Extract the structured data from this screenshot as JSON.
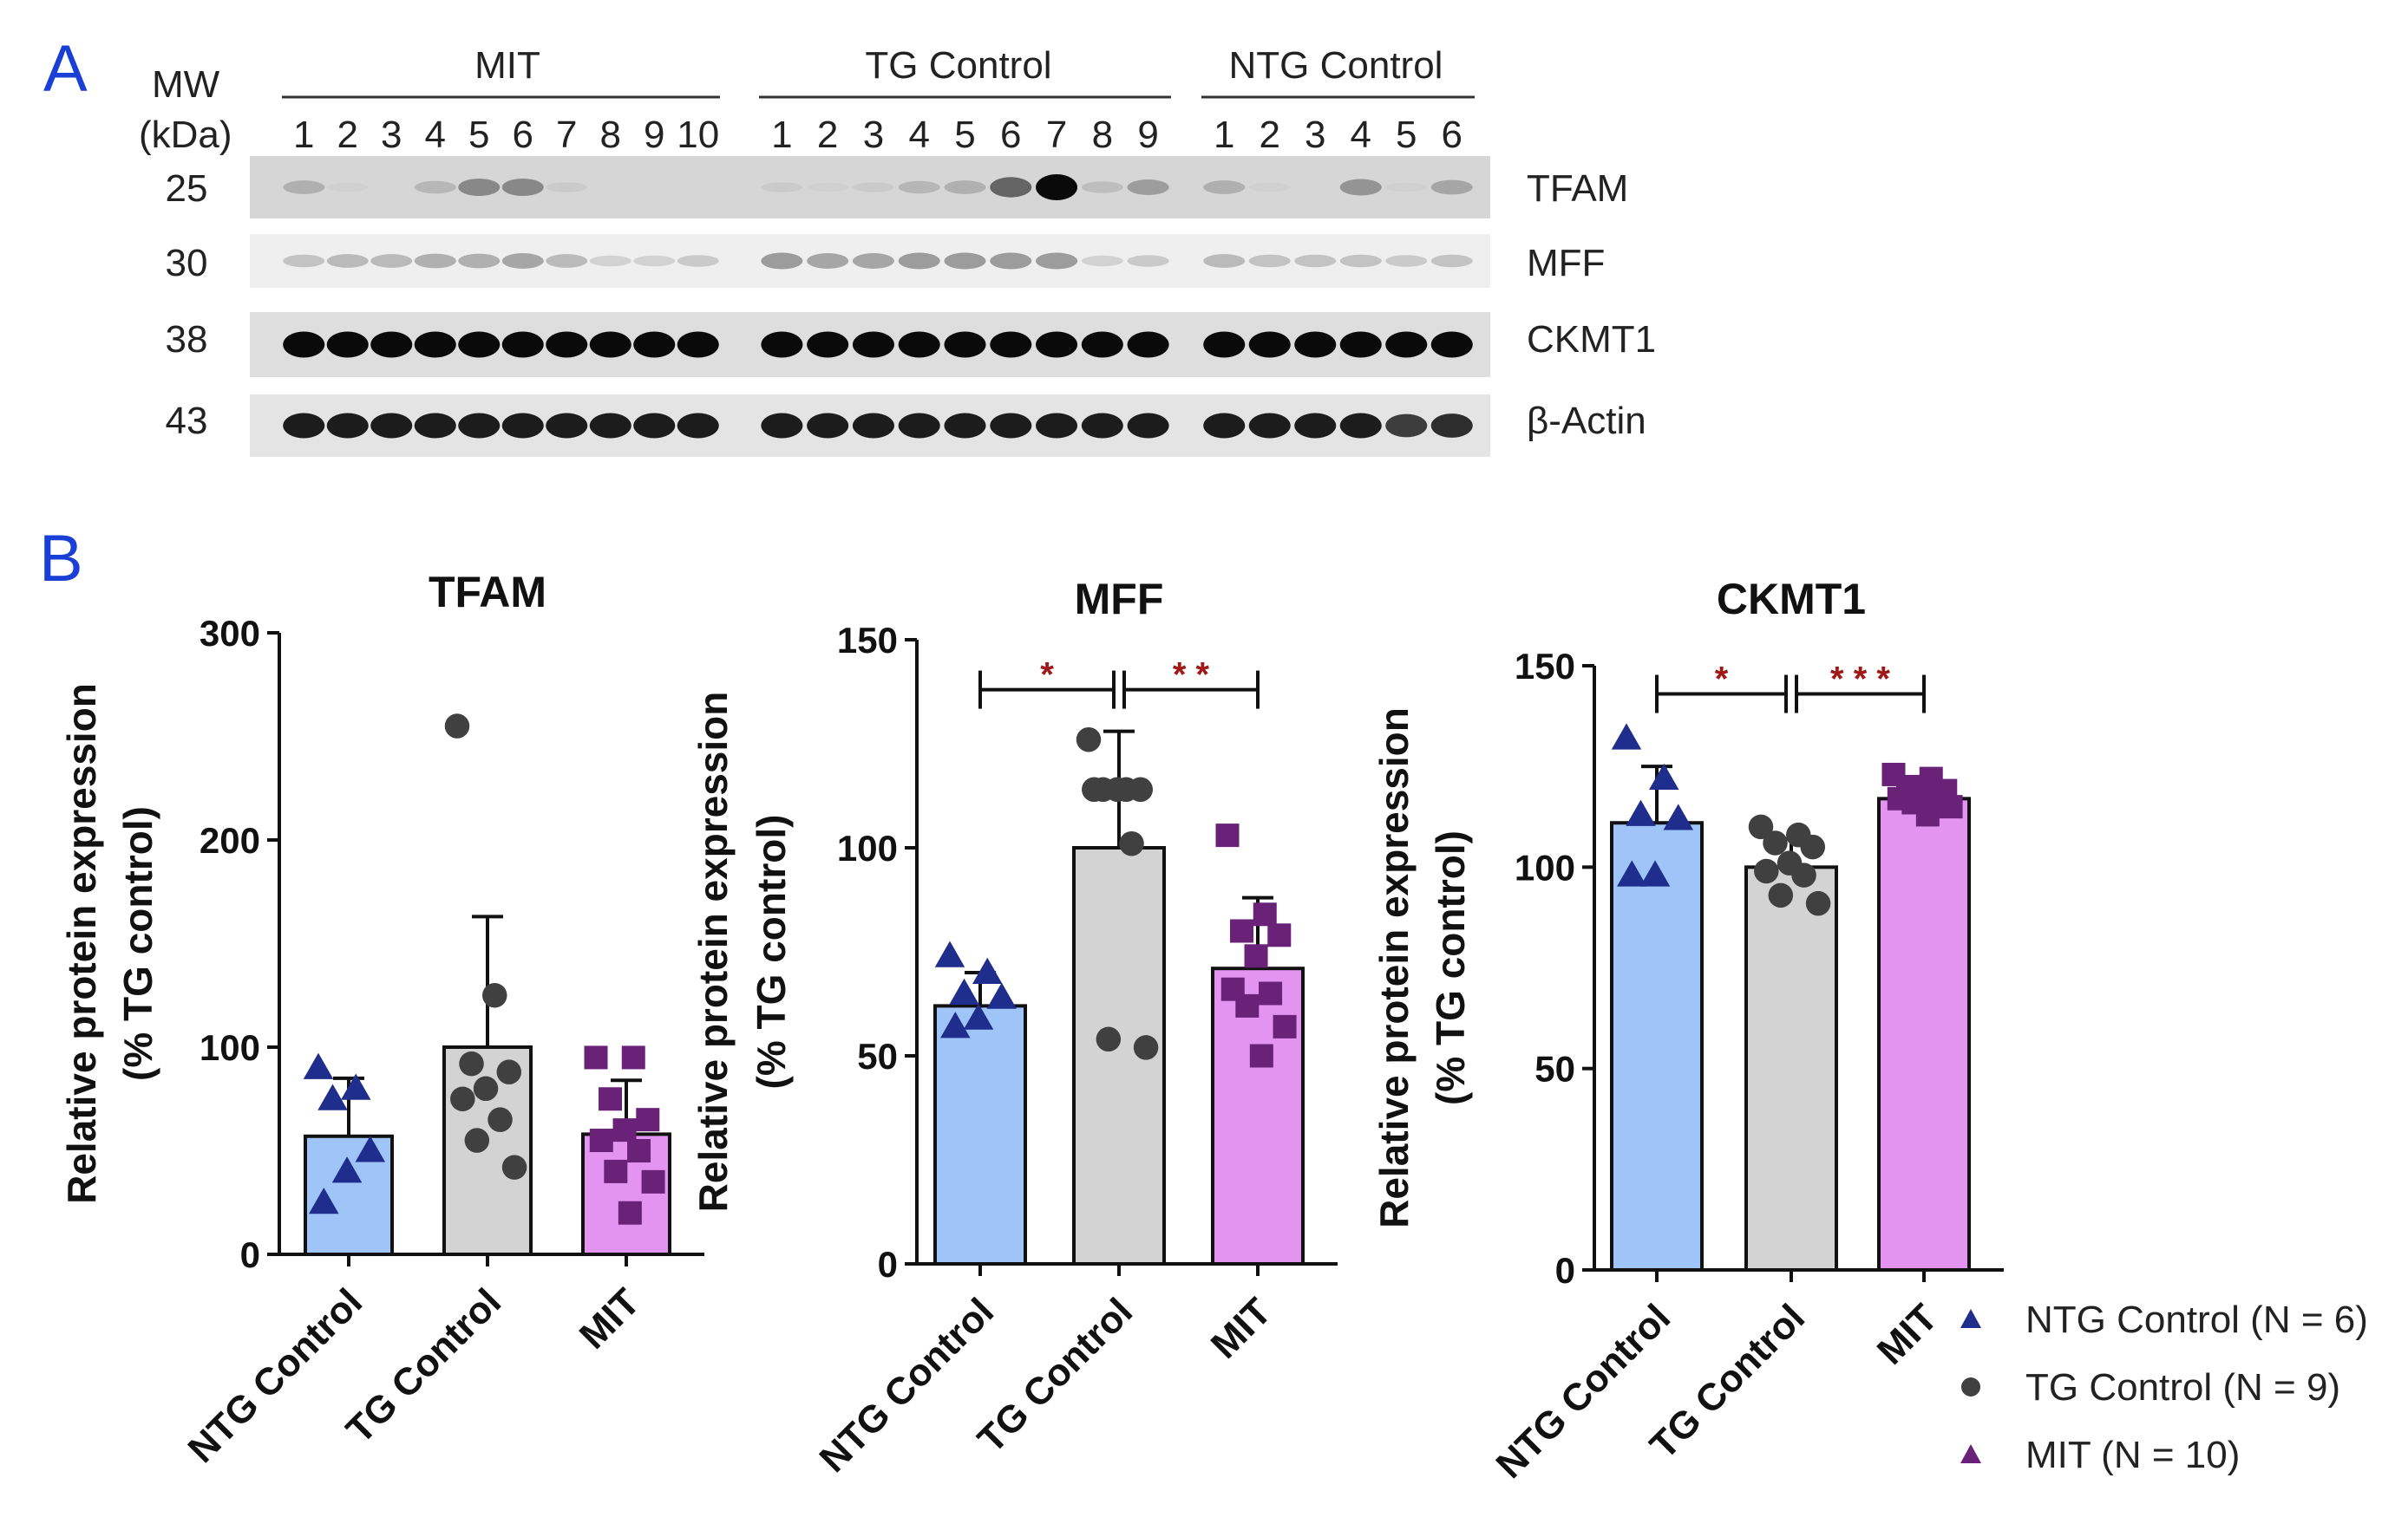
{
  "panel_a": {
    "label": "A",
    "mw_label": "MW",
    "kda_label": "(kDa)",
    "groups": [
      {
        "name": "MIT",
        "lanes": [
          "1",
          "2",
          "3",
          "4",
          "5",
          "6",
          "7",
          "8",
          "9",
          "10"
        ]
      },
      {
        "name": "TG Control",
        "lanes": [
          "1",
          "2",
          "3",
          "4",
          "5",
          "6",
          "7",
          "8",
          "9"
        ]
      },
      {
        "name": "NTG Control",
        "lanes": [
          "1",
          "2",
          "3",
          "4",
          "5",
          "6"
        ]
      }
    ],
    "blots": [
      {
        "mw": "25",
        "protein": "TFAM",
        "bg": "#d6d6d6",
        "intensity": [
          0.35,
          0.1,
          0.05,
          0.3,
          0.55,
          0.55,
          0.15,
          0.05,
          0.05,
          0.05,
          0.15,
          0.1,
          0.15,
          0.3,
          0.35,
          0.7,
          1.0,
          0.25,
          0.45,
          0.35,
          0.1,
          0.05,
          0.5,
          0.1,
          0.4
        ]
      },
      {
        "mw": "30",
        "protein": "MFF",
        "bg": "#efefef",
        "intensity": [
          0.3,
          0.35,
          0.35,
          0.4,
          0.4,
          0.45,
          0.35,
          0.2,
          0.2,
          0.25,
          0.5,
          0.45,
          0.45,
          0.5,
          0.5,
          0.5,
          0.5,
          0.2,
          0.25,
          0.35,
          0.3,
          0.3,
          0.3,
          0.25,
          0.3
        ]
      },
      {
        "mw": "38",
        "protein": "CKMT1",
        "bg": "#dedede",
        "intensity": [
          1,
          1,
          1,
          1,
          1,
          1,
          1,
          1,
          1,
          1,
          1,
          1,
          1,
          1,
          1,
          1,
          1,
          1,
          1,
          1,
          1,
          1,
          1,
          1,
          1
        ]
      },
      {
        "mw": "43",
        "protein": "β-Actin",
        "bg": "#e4e4e4",
        "intensity": [
          0.95,
          0.95,
          0.95,
          0.95,
          0.95,
          0.95,
          0.95,
          0.95,
          0.95,
          0.95,
          0.95,
          0.95,
          0.95,
          0.95,
          0.95,
          0.95,
          0.95,
          0.95,
          0.95,
          0.95,
          0.95,
          0.95,
          0.95,
          0.85,
          0.9
        ]
      }
    ]
  },
  "panel_b": {
    "label": "B"
  },
  "colors": {
    "ntg_fill": "#9fc5f8",
    "tg_fill": "#d3d3d3",
    "mit_fill": "#e394f0",
    "ntg_marker": "#1f2d8c",
    "tg_marker": "#404040",
    "mit_marker": "#6a2278",
    "sig": "#a01818",
    "panel_label": "#1a3fd6"
  },
  "chart_data": [
    {
      "type": "bar",
      "title": "TFAM",
      "ylabel_line1": "Relative protein expression",
      "ylabel_line2": "(% TG  control)",
      "categories": [
        "NTG Control",
        "TG Control",
        "MIT"
      ],
      "ylim": [
        0,
        300
      ],
      "yticks": [
        0,
        100,
        200,
        300
      ],
      "yticklabels": [
        "0",
        "100",
        "200",
        "300"
      ],
      "means": [
        57,
        100,
        58
      ],
      "sd": [
        28,
        63,
        26
      ],
      "points": [
        [
          90,
          80,
          75,
          50,
          40,
          25
        ],
        [
          255,
          125,
          92,
          88,
          80,
          75,
          65,
          55,
          42
        ],
        [
          95,
          95,
          75,
          65,
          60,
          55,
          50,
          40,
          35,
          20
        ]
      ],
      "significance": []
    },
    {
      "type": "bar",
      "title": "MFF",
      "ylabel_line1": "Relative protein expression",
      "ylabel_line2": "(% TG  control)",
      "categories": [
        "NTG Control",
        "TG Control",
        "MIT"
      ],
      "ylim": [
        0,
        150
      ],
      "yticks": [
        0,
        50,
        100,
        150
      ],
      "yticklabels": [
        "0",
        "50",
        "100",
        "150"
      ],
      "means": [
        62,
        100,
        71
      ],
      "sd": [
        8,
        28,
        17
      ],
      "points": [
        [
          74,
          70,
          65,
          64,
          59,
          57
        ],
        [
          126,
          114,
          114,
          114,
          114,
          114,
          101,
          54,
          52
        ],
        [
          103,
          84,
          80,
          79,
          74,
          66,
          65,
          62,
          57,
          50
        ]
      ],
      "significance": [
        {
          "from": 0,
          "to": 1,
          "label": "*",
          "y": 138
        },
        {
          "from": 1,
          "to": 2,
          "label": "* *",
          "y": 138
        }
      ]
    },
    {
      "type": "bar",
      "title": "CKMT1",
      "ylabel_line1": "Relative protein expression",
      "ylabel_line2": "(% TG  control)",
      "categories": [
        "NTG Control",
        "TG Control",
        "MIT"
      ],
      "ylim": [
        0,
        150
      ],
      "yticks": [
        0,
        50,
        100,
        150
      ],
      "yticklabels": [
        "0",
        "50",
        "100",
        "150"
      ],
      "means": [
        111,
        100,
        117
      ],
      "sd": [
        14,
        7,
        4
      ],
      "points": [
        [
          132,
          122,
          113,
          112,
          98,
          98
        ],
        [
          110,
          108,
          106,
          105,
          101,
          99,
          98,
          93,
          91
        ],
        [
          123,
          122,
          120,
          119,
          118,
          117,
          116,
          116,
          115,
          113
        ]
      ],
      "significance": [
        {
          "from": 0,
          "to": 1,
          "label": "*",
          "y": 143
        },
        {
          "from": 1,
          "to": 2,
          "label": "* * *",
          "y": 143
        }
      ]
    }
  ],
  "legend": {
    "entries": [
      {
        "marker": "triangle",
        "color_key": "ntg_marker",
        "label": "NTG Control (N = 6)"
      },
      {
        "marker": "circle",
        "color_key": "tg_marker",
        "label": "TG Control (N = 9)"
      },
      {
        "marker": "triangle",
        "color_key": "mit_marker",
        "label": "MIT (N = 10)"
      }
    ]
  }
}
